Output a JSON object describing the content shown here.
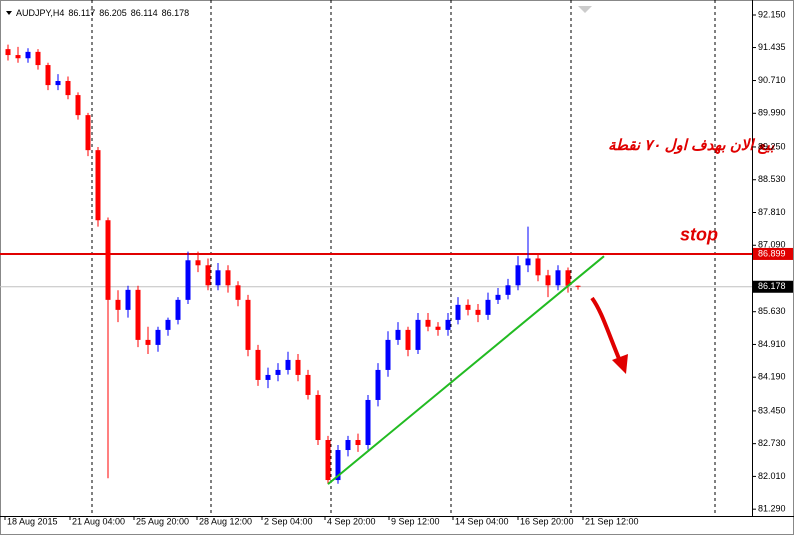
{
  "chart_data": {
    "type": "candlestick",
    "header": {
      "symbol": "AUDJPY,H4",
      "ohlc": [
        86.117,
        86.205,
        86.114,
        86.178
      ]
    },
    "bull_color": "#0000ff",
    "bear_color": "#ff0000",
    "open": [
      91.4,
      91.27,
      91.2,
      91.34,
      91.05,
      90.61,
      90.7,
      90.39,
      89.95,
      89.18,
      87.64,
      85.89,
      85.67,
      86.11,
      85.01,
      84.9,
      85.23,
      85.45,
      85.89,
      86.76,
      86.65,
      86.21,
      86.54,
      86.21,
      85.89,
      84.79,
      84.13,
      84.24,
      84.35,
      84.57,
      84.24,
      83.8,
      82.81,
      81.93,
      82.59,
      82.81,
      82.7,
      83.69,
      84.35,
      85.01,
      85.23,
      84.79,
      85.45,
      85.3,
      85.23,
      85.45,
      85.78,
      85.67,
      85.56,
      85.89,
      86.0,
      86.21,
      86.65,
      86.8,
      86.43,
      86.21,
      86.54,
      86.2
    ],
    "high": [
      91.5,
      91.45,
      91.42,
      91.4,
      91.1,
      90.85,
      90.8,
      90.45,
      90.0,
      89.25,
      87.7,
      86.1,
      86.2,
      86.2,
      85.3,
      85.3,
      85.5,
      85.95,
      86.95,
      86.95,
      86.8,
      86.7,
      86.65,
      86.3,
      86.0,
      84.9,
      84.4,
      84.5,
      84.75,
      84.7,
      84.35,
      83.9,
      82.9,
      82.7,
      82.9,
      82.95,
      83.8,
      84.5,
      85.2,
      85.4,
      85.3,
      85.6,
      85.6,
      85.4,
      85.6,
      85.95,
      85.9,
      85.8,
      86.05,
      86.15,
      86.35,
      86.85,
      87.5,
      86.9,
      86.55,
      86.65,
      86.6,
      86.205
    ],
    "low": [
      91.15,
      91.1,
      91.1,
      90.95,
      90.5,
      90.5,
      90.3,
      89.85,
      89.05,
      87.5,
      81.97,
      85.4,
      85.5,
      84.85,
      84.7,
      84.75,
      85.1,
      85.35,
      85.8,
      86.5,
      86.1,
      86.1,
      86.05,
      85.75,
      84.65,
      84.0,
      83.95,
      84.1,
      84.25,
      84.1,
      83.7,
      82.7,
      81.84,
      81.85,
      82.45,
      82.55,
      82.6,
      83.55,
      84.2,
      84.9,
      84.65,
      84.7,
      85.2,
      85.1,
      85.1,
      85.35,
      85.55,
      85.4,
      85.45,
      85.8,
      85.9,
      86.1,
      86.5,
      86.3,
      85.95,
      86.1,
      86.05,
      86.114
    ],
    "close": [
      91.27,
      91.2,
      91.34,
      91.05,
      90.61,
      90.7,
      90.39,
      89.95,
      89.18,
      87.64,
      85.89,
      85.67,
      86.11,
      85.01,
      84.9,
      85.23,
      85.45,
      85.89,
      86.76,
      86.65,
      86.21,
      86.54,
      86.21,
      85.89,
      84.79,
      84.13,
      84.24,
      84.35,
      84.57,
      84.24,
      83.8,
      82.81,
      81.93,
      82.59,
      82.81,
      82.7,
      83.69,
      84.35,
      85.01,
      85.23,
      84.79,
      85.45,
      85.3,
      85.23,
      85.45,
      85.78,
      85.67,
      85.56,
      85.89,
      86.0,
      86.21,
      86.65,
      86.8,
      86.43,
      86.21,
      86.54,
      86.2,
      86.178
    ],
    "ylim": [
      81.14,
      92.37
    ],
    "yticks": [
      {
        "value": 92.15,
        "label": "92.150"
      },
      91.435,
      {
        "value": 90.71,
        "label": "90.710"
      },
      {
        "value": 89.99,
        "label": "89.990"
      },
      {
        "value": 89.25,
        "label": "89.250"
      },
      {
        "value": 88.53,
        "label": "88.530"
      },
      {
        "value": 87.81,
        "label": "87.810"
      },
      {
        "value": 87.09,
        "label": "87.090"
      },
      {
        "value": 85.63,
        "label": "85.630"
      },
      {
        "value": 84.91,
        "label": "84.910"
      },
      {
        "value": 84.19,
        "label": "84.190"
      },
      {
        "value": 83.45,
        "label": "83.450"
      },
      {
        "value": 82.73,
        "label": "82.730"
      },
      {
        "value": 82.01,
        "label": "82.010"
      },
      {
        "value": 81.29,
        "label": "81.290"
      }
    ],
    "x_labels": [
      {
        "value": -0.3,
        "label": "18 Aug 2015"
      },
      {
        "value": 6.2,
        "label": "21 Aug 04:00"
      },
      {
        "value": 12.6,
        "label": "25 Aug 20:00"
      },
      {
        "value": 18.9,
        "label": "28 Aug 12:00"
      },
      {
        "value": 25.4,
        "label": "2 Sep 04:00"
      },
      {
        "value": 31.7,
        "label": "4 Sep 20:00"
      },
      {
        "value": 38.1,
        "label": "9 Sep 12:00"
      },
      {
        "value": 44.5,
        "label": "14 Sep 04:00"
      },
      {
        "value": 51,
        "label": "16 Sep 20:00"
      },
      {
        "value": 57.5,
        "label": "21 Sep 12:00"
      }
    ],
    "stop_level": {
      "value": 86.899,
      "color": "#e00000",
      "label": "stop"
    },
    "bid_color": "#c0c0c0",
    "trendline": {
      "from": [
        32,
        81.84
      ],
      "to": [
        59.6,
        86.85
      ],
      "color": "#22bb22"
    },
    "annotation": "بيع الان بهدف اول ٧٠ نقطة"
  }
}
